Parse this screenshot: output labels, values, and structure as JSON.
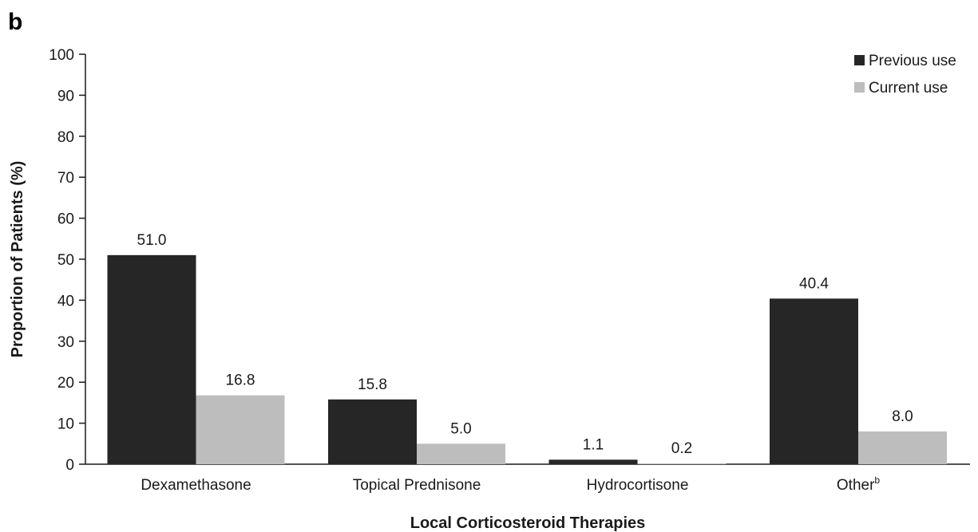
{
  "panel_label": "b",
  "colors": {
    "previous": "#262626",
    "current": "#bdbdbd",
    "axis": "#1a1a1a"
  },
  "chart_data": {
    "type": "bar",
    "categories": [
      "Dexamethasone",
      "Topical Prednisone",
      "Hydrocortisone",
      "Other"
    ],
    "category_superscripts": [
      "",
      "",
      "",
      "b"
    ],
    "series": [
      {
        "name": "Previous use",
        "values": [
          51.0,
          15.8,
          1.1,
          40.4
        ],
        "labels": [
          "51.0",
          "15.8",
          "1.1",
          "40.4"
        ]
      },
      {
        "name": "Current use",
        "values": [
          16.8,
          5.0,
          0.2,
          8.0
        ],
        "labels": [
          "16.8",
          "5.0",
          "0.2",
          "8.0"
        ]
      }
    ],
    "title": "",
    "xlabel": "Local Corticosteroid Therapies",
    "ylabel": "Proportion of Patients (%)",
    "ylim": [
      0,
      100
    ],
    "yticks": [
      0,
      10,
      20,
      30,
      40,
      50,
      60,
      70,
      80,
      90,
      100
    ],
    "grid": false,
    "legend_position": "top-right"
  }
}
